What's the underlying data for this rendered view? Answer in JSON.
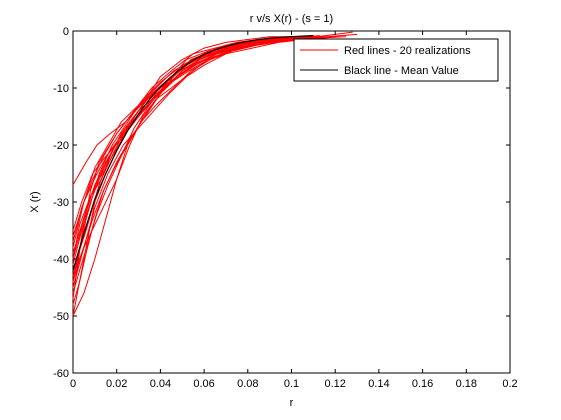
{
  "chart_data": {
    "type": "line",
    "title": "r v/s X(r) - (s = 1)",
    "xlabel": "r",
    "ylabel": "X (r)",
    "xlim": [
      0,
      0.2
    ],
    "ylim": [
      -60,
      0
    ],
    "xticks": [
      0,
      0.02,
      0.04,
      0.06,
      0.08,
      0.1,
      0.12,
      0.14,
      0.16,
      0.18,
      0.2
    ],
    "xtick_labels": [
      "0",
      "0.02",
      "0.04",
      "0.06",
      "0.08",
      "0.1",
      "0.12",
      "0.14",
      "0.16",
      "0.18",
      "0.2"
    ],
    "yticks": [
      -60,
      -50,
      -40,
      -30,
      -20,
      -10,
      0
    ],
    "ytick_labels": [
      "-60",
      "-50",
      "-40",
      "-30",
      "-20",
      "-10",
      "0"
    ],
    "grid": false,
    "legend": {
      "position": "top-right",
      "entries": [
        {
          "label": "Red lines - 20 realizations",
          "color": "#ff0000"
        },
        {
          "label": "Black line - Mean Value",
          "color": "#000000"
        }
      ]
    },
    "colors": {
      "realization": "#ff0000",
      "mean": "#000000",
      "axes": "#000000"
    },
    "series": [
      {
        "x": [
          0,
          0.005,
          0.01,
          0.015,
          0.02,
          0.025,
          0.03,
          0.035,
          0.04,
          0.05,
          0.06,
          0.07,
          0.08,
          0.09,
          0.1
        ],
        "values": [
          -50,
          -40,
          -30,
          -25,
          -21,
          -17,
          -14,
          -11,
          -8,
          -5,
          -3,
          -2,
          -1.5,
          -1,
          -1
        ]
      },
      {
        "x": [
          0,
          0.004,
          0.008,
          0.012,
          0.02,
          0.028,
          0.036,
          0.045,
          0.055,
          0.065,
          0.075,
          0.085,
          0.1,
          0.11
        ],
        "values": [
          -47,
          -36,
          -28,
          -23,
          -18,
          -14,
          -10,
          -7,
          -4,
          -3,
          -2,
          -1.5,
          -1,
          -0.8
        ]
      },
      {
        "x": [
          0,
          0.006,
          0.012,
          0.018,
          0.025,
          0.032,
          0.04,
          0.05,
          0.06,
          0.07,
          0.08,
          0.09,
          0.105
        ],
        "values": [
          -44,
          -33,
          -25,
          -20,
          -16,
          -12,
          -9,
          -6,
          -4,
          -2.5,
          -2,
          -1.5,
          -1
        ]
      },
      {
        "x": [
          0,
          0.003,
          0.008,
          0.013,
          0.019,
          0.026,
          0.034,
          0.043,
          0.052,
          0.062,
          0.073,
          0.085,
          0.097,
          0.11,
          0.12
        ],
        "values": [
          -40,
          -34,
          -29,
          -26,
          -21,
          -16,
          -12,
          -9,
          -5,
          -3.5,
          -2.5,
          -2,
          -1.5,
          -1.2,
          -1
        ]
      },
      {
        "x": [
          0,
          0.005,
          0.01,
          0.016,
          0.022,
          0.03,
          0.038,
          0.046,
          0.056,
          0.066,
          0.078,
          0.09,
          0.1
        ],
        "values": [
          -38,
          -30,
          -24,
          -20,
          -16,
          -13,
          -10,
          -7,
          -5,
          -3,
          -2,
          -1.5,
          -1
        ]
      },
      {
        "x": [
          0,
          0.004,
          0.009,
          0.015,
          0.022,
          0.03,
          0.038,
          0.048,
          0.058,
          0.07,
          0.082,
          0.095,
          0.108,
          0.12,
          0.128
        ],
        "values": [
          -35,
          -30,
          -25,
          -22,
          -19,
          -15,
          -11,
          -8,
          -5,
          -3,
          -2.5,
          -1.8,
          -1.2,
          -0.6,
          -0.2
        ]
      },
      {
        "x": [
          0,
          0.006,
          0.011,
          0.017,
          0.024,
          0.031,
          0.04,
          0.048,
          0.058,
          0.068,
          0.08,
          0.09,
          0.1
        ],
        "values": [
          -27,
          -23,
          -20,
          -18,
          -16,
          -13,
          -10,
          -7,
          -4.5,
          -3,
          -2,
          -1.2,
          -1
        ]
      },
      {
        "x": [
          0,
          0.005,
          0.01,
          0.015,
          0.02,
          0.026,
          0.032,
          0.038,
          0.045,
          0.055,
          0.065,
          0.075,
          0.085,
          0.1,
          0.11,
          0.12
        ],
        "values": [
          -43,
          -38,
          -34,
          -30,
          -26,
          -20,
          -15,
          -12,
          -10,
          -7,
          -4,
          -3,
          -2,
          -1.5,
          -1.2,
          -1
        ]
      },
      {
        "x": [
          0,
          0.003,
          0.007,
          0.011,
          0.016,
          0.022,
          0.028,
          0.035,
          0.043,
          0.052,
          0.062,
          0.072,
          0.083,
          0.095,
          0.11
        ],
        "values": [
          -46,
          -42,
          -37,
          -32,
          -27,
          -22,
          -17,
          -13,
          -9,
          -6,
          -4,
          -3,
          -2,
          -1.5,
          -1
        ]
      },
      {
        "x": [
          0,
          0.004,
          0.008,
          0.012,
          0.018,
          0.024,
          0.03,
          0.036,
          0.042,
          0.05,
          0.058,
          0.066,
          0.076,
          0.086,
          0.1,
          0.118
        ],
        "values": [
          -41,
          -35,
          -30,
          -26,
          -22,
          -18,
          -15,
          -12,
          -10,
          -7,
          -5,
          -3.5,
          -2.5,
          -2,
          -1.5,
          -1
        ]
      },
      {
        "x": [
          0,
          0.005,
          0.01,
          0.015,
          0.02,
          0.025,
          0.031,
          0.038,
          0.046,
          0.054,
          0.064,
          0.074,
          0.086,
          0.098,
          0.112,
          0.125
        ],
        "values": [
          -50,
          -46,
          -40,
          -33,
          -26,
          -20,
          -16,
          -12,
          -8,
          -5,
          -3.5,
          -2.5,
          -1.8,
          -1.4,
          -1.2,
          -1
        ]
      },
      {
        "x": [
          0,
          0.004,
          0.009,
          0.014,
          0.02,
          0.026,
          0.033,
          0.04,
          0.048,
          0.056,
          0.066,
          0.076,
          0.088,
          0.1,
          0.112
        ],
        "values": [
          -37,
          -31,
          -26,
          -22,
          -18,
          -15,
          -12,
          -10,
          -8,
          -6,
          -4,
          -3,
          -2,
          -1.5,
          -1
        ]
      },
      {
        "x": [
          0,
          0.005,
          0.01,
          0.016,
          0.023,
          0.03,
          0.037,
          0.044,
          0.052,
          0.06,
          0.07,
          0.082,
          0.094,
          0.106,
          0.118
        ],
        "values": [
          -45,
          -38,
          -31,
          -25,
          -20,
          -17,
          -14,
          -11,
          -8,
          -6,
          -4,
          -3,
          -2,
          -1.5,
          -1
        ]
      },
      {
        "x": [
          0,
          0.004,
          0.008,
          0.013,
          0.018,
          0.024,
          0.03,
          0.036,
          0.042,
          0.048,
          0.056,
          0.064,
          0.074,
          0.086,
          0.1,
          0.113
        ],
        "values": [
          -39,
          -34,
          -29,
          -25,
          -21,
          -17,
          -14,
          -11,
          -9,
          -7,
          -5,
          -3.8,
          -2.6,
          -1.8,
          -1.2,
          -0.8
        ]
      },
      {
        "x": [
          0,
          0.006,
          0.012,
          0.018,
          0.024,
          0.03,
          0.036,
          0.042,
          0.05,
          0.058,
          0.068,
          0.08,
          0.092,
          0.104,
          0.116
        ],
        "values": [
          -42,
          -35,
          -27,
          -21,
          -17,
          -14,
          -12,
          -10,
          -7,
          -5,
          -3.5,
          -2.5,
          -2,
          -1.5,
          -1.2
        ]
      },
      {
        "x": [
          0,
          0.003,
          0.006,
          0.01,
          0.014,
          0.02,
          0.026,
          0.033,
          0.04,
          0.048,
          0.057,
          0.066,
          0.076,
          0.088,
          0.1,
          0.115
        ],
        "values": [
          -48,
          -44,
          -39,
          -33,
          -28,
          -23,
          -19,
          -15,
          -11,
          -8,
          -5.5,
          -4,
          -3,
          -2,
          -1.5,
          -1
        ]
      },
      {
        "x": [
          0,
          0.005,
          0.011,
          0.017,
          0.023,
          0.03,
          0.037,
          0.045,
          0.053,
          0.062,
          0.072,
          0.083,
          0.095,
          0.108,
          0.122
        ],
        "values": [
          -36,
          -30,
          -25,
          -21,
          -18,
          -15,
          -12,
          -9,
          -7,
          -5,
          -3.5,
          -2.5,
          -1.8,
          -1.4,
          -1
        ]
      },
      {
        "x": [
          0,
          0.004,
          0.009,
          0.014,
          0.019,
          0.025,
          0.031,
          0.038,
          0.046,
          0.054,
          0.063,
          0.073,
          0.084,
          0.096,
          0.11,
          0.13
        ],
        "values": [
          -44,
          -39,
          -33,
          -28,
          -24,
          -20,
          -16,
          -13,
          -10,
          -7,
          -5,
          -3.5,
          -2.5,
          -1.8,
          -1.2,
          -0.6
        ]
      },
      {
        "x": [
          0,
          0.005,
          0.01,
          0.015,
          0.021,
          0.027,
          0.034,
          0.041,
          0.049,
          0.058,
          0.068,
          0.079,
          0.091,
          0.104
        ],
        "values": [
          -40,
          -33,
          -27,
          -23,
          -19,
          -16,
          -13,
          -10,
          -7.5,
          -5.5,
          -4,
          -2.8,
          -2,
          -1.4
        ]
      },
      {
        "x": [
          0,
          0.004,
          0.008,
          0.012,
          0.017,
          0.022,
          0.028,
          0.034,
          0.041,
          0.049,
          0.058,
          0.068,
          0.079,
          0.091,
          0.105,
          0.12
        ],
        "values": [
          -43,
          -37,
          -32,
          -27,
          -22,
          -18,
          -15,
          -12,
          -9.5,
          -7,
          -5,
          -3.6,
          -2.6,
          -1.9,
          -1.4,
          -1
        ]
      }
    ],
    "mean": {
      "name": "Black line - Mean Value",
      "x": [
        0,
        0.005,
        0.01,
        0.015,
        0.02,
        0.025,
        0.03,
        0.035,
        0.04,
        0.045,
        0.05,
        0.055,
        0.06,
        0.065,
        0.07,
        0.075,
        0.08,
        0.085,
        0.09,
        0.095,
        0.1,
        0.105,
        0.11
      ],
      "values": [
        -42,
        -35.5,
        -29.5,
        -25,
        -21,
        -17.5,
        -14.5,
        -12,
        -9.8,
        -8,
        -6.4,
        -5.1,
        -4.1,
        -3.3,
        -2.7,
        -2.2,
        -1.8,
        -1.5,
        -1.3,
        -1.1,
        -1,
        -0.9,
        -0.8
      ]
    }
  }
}
